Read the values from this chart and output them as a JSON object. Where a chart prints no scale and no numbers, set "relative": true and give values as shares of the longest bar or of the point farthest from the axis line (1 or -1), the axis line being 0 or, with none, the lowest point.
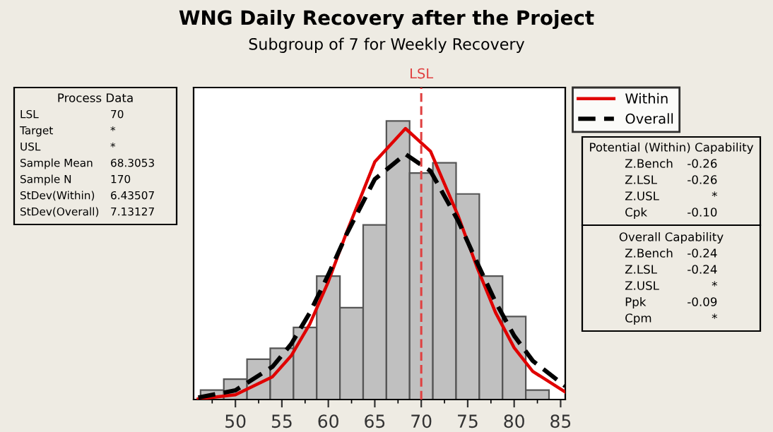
{
  "chart_data": {
    "type": "histogram",
    "title": "WNG Daily Recovery after the Project",
    "subtitle": "Subgroup of 7 for Weekly Recovery",
    "relative": true,
    "bins": [
      46.25,
      48.75,
      51.25,
      53.75,
      56.25,
      58.75,
      61.25,
      63.75,
      66.25,
      68.75,
      71.25,
      73.75,
      76.25,
      78.75,
      81.25,
      83.75
    ],
    "values": [
      0.034,
      0.073,
      0.145,
      0.184,
      0.259,
      0.443,
      0.33,
      0.627,
      1,
      0.813,
      0.85,
      0.738,
      0.443,
      0.298,
      0.034
    ],
    "color": "#c0c0c0",
    "series": [
      {
        "name": "Within",
        "type": "line",
        "color": "#e00000",
        "line_style": "solid",
        "x": [
          46,
          50,
          54,
          56,
          58,
          60,
          62,
          65,
          68.3,
          71,
          74,
          76,
          78,
          80,
          82,
          85.5
        ],
        "values": [
          0.002,
          0.017,
          0.082,
          0.157,
          0.271,
          0.423,
          0.603,
          0.853,
          0.973,
          0.891,
          0.657,
          0.475,
          0.312,
          0.186,
          0.101,
          0.027
        ]
      },
      {
        "name": "Overall",
        "type": "line",
        "color": "#000000",
        "line_style": "dashed",
        "x": [
          46,
          50,
          54,
          56,
          58,
          60,
          62,
          65,
          68.3,
          71,
          74,
          76,
          78,
          80,
          82,
          85.5
        ],
        "values": [
          0.007,
          0.033,
          0.118,
          0.199,
          0.311,
          0.448,
          0.596,
          0.791,
          0.881,
          0.82,
          0.64,
          0.492,
          0.35,
          0.229,
          0.139,
          0.048
        ]
      }
    ],
    "xlim": [
      45.5,
      85.5
    ],
    "xticks": [
      {
        "value": 47.5,
        "label": null
      },
      50,
      {
        "value": 52.5,
        "label": null
      },
      55,
      {
        "value": 57.5,
        "label": null
      },
      60,
      {
        "value": 62.5,
        "label": null
      },
      65,
      {
        "value": 67.5,
        "label": null
      },
      70,
      {
        "value": 72.5,
        "label": null
      },
      75,
      {
        "value": 77.5,
        "label": null
      },
      80,
      {
        "value": 82.5,
        "label": null
      },
      85
    ],
    "tick_labels": "x",
    "grid": false,
    "legend": "right",
    "ref_lines": [
      {
        "axis": "x",
        "value": 70,
        "label": "LSL",
        "color": "#e04040",
        "line_style": "dashed"
      }
    ],
    "annotations": [
      "Process Data",
      "LSL\t70",
      "Target\t*",
      "USL\t*",
      "Sample Mean\t68.3053",
      "Sample N\t170",
      "StDev(Within)\t6.43507",
      "StDev(Overall)\t7.13127",
      "Potential (Within) Capability",
      "Z.Bench\t-0.26",
      "Z.LSL\t-0.26",
      "Z.USL\t*",
      "Cpk\t-0.10",
      "Overall Capability",
      "Z.Bench\t-0.24",
      "Z.LSL\t-0.24",
      "Z.USL\t*",
      "Ppk\t-0.09",
      "Cpm\t*"
    ]
  }
}
